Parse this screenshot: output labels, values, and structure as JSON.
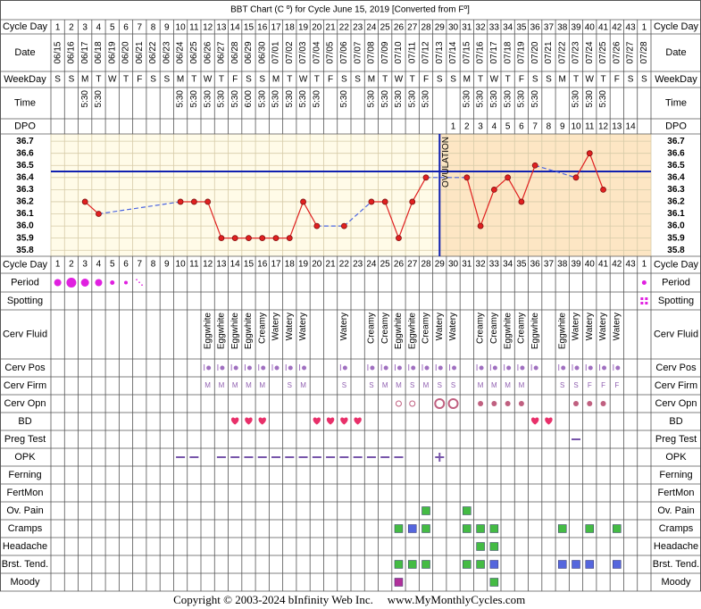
{
  "title": "BBT Chart (C º) for Cycle June 15, 2019  [Converted from Fº]",
  "labels": {
    "cycle_day": "Cycle Day",
    "date": "Date",
    "weekday": "WeekDay",
    "time": "Time",
    "dpo": "DPO",
    "period": "Period",
    "spotting": "Spotting",
    "cerv_fluid": "Cerv Fluid",
    "cerv_pos": "Cerv Pos",
    "cerv_firm": "Cerv Firm",
    "cerv_opn": "Cerv Opn",
    "bd": "BD",
    "preg_test": "Preg Test",
    "opk": "OPK",
    "ferning": "Ferning",
    "fertmon": "FertMon",
    "ov_pain": "Ov. Pain",
    "cramps": "Cramps",
    "headache": "Headache",
    "brst_tend": "Brst. Tend.",
    "moody": "Moody"
  },
  "cycle_days": [
    1,
    2,
    3,
    4,
    5,
    6,
    7,
    8,
    9,
    10,
    11,
    12,
    13,
    14,
    15,
    16,
    17,
    18,
    19,
    20,
    21,
    22,
    23,
    24,
    25,
    26,
    27,
    28,
    29,
    30,
    31,
    32,
    33,
    34,
    35,
    36,
    37,
    38,
    39,
    40,
    41,
    42,
    43,
    1
  ],
  "dates": [
    "06/15",
    "06/16",
    "06/17",
    "06/18",
    "06/19",
    "06/20",
    "06/21",
    "06/22",
    "06/23",
    "06/24",
    "06/25",
    "06/26",
    "06/27",
    "06/28",
    "06/29",
    "06/30",
    "07/01",
    "07/02",
    "07/03",
    "07/04",
    "07/05",
    "07/06",
    "07/07",
    "07/08",
    "07/09",
    "07/10",
    "07/11",
    "07/12",
    "07/13",
    "07/14",
    "07/15",
    "07/16",
    "07/17",
    "07/18",
    "07/19",
    "07/20",
    "07/21",
    "07/22",
    "07/23",
    "07/24",
    "07/25",
    "07/26",
    "07/27",
    "07/28"
  ],
  "weekdays": [
    "S",
    "S",
    "M",
    "T",
    "W",
    "T",
    "F",
    "S",
    "S",
    "M",
    "T",
    "W",
    "T",
    "F",
    "S",
    "S",
    "M",
    "T",
    "W",
    "T",
    "F",
    "S",
    "S",
    "M",
    "T",
    "W",
    "T",
    "F",
    "S",
    "S",
    "M",
    "T",
    "W",
    "T",
    "F",
    "S",
    "S",
    "M",
    "T",
    "W",
    "T",
    "F",
    "S",
    "S"
  ],
  "times": [
    null,
    null,
    "5:30",
    "5:30",
    null,
    null,
    null,
    null,
    null,
    "5:30",
    "5:30",
    "5:30",
    "5:30",
    "5:30",
    "6:00",
    "5:30",
    "5:30",
    "5:30",
    "5:30",
    "5:30",
    null,
    "5:30",
    null,
    "5:30",
    "5:30",
    "5:30",
    "5:30",
    "5:30",
    null,
    null,
    "5:30",
    "5:30",
    "5:30",
    "5:30",
    "5:30",
    "5:30",
    null,
    null,
    "5:30",
    "5:30",
    "5:30",
    null,
    null,
    null
  ],
  "dpo": [
    null,
    null,
    null,
    null,
    null,
    null,
    null,
    null,
    null,
    null,
    null,
    null,
    null,
    null,
    null,
    null,
    null,
    null,
    null,
    null,
    null,
    null,
    null,
    null,
    null,
    null,
    null,
    null,
    null,
    1,
    2,
    3,
    4,
    5,
    6,
    7,
    8,
    9,
    10,
    11,
    12,
    13,
    14,
    null
  ],
  "chart": {
    "type": "line",
    "values": [
      null,
      null,
      36.2,
      36.1,
      null,
      null,
      null,
      null,
      null,
      36.2,
      36.2,
      36.2,
      35.9,
      35.9,
      35.9,
      35.9,
      35.9,
      35.9,
      36.2,
      36.0,
      null,
      36.0,
      null,
      36.2,
      36.2,
      35.9,
      36.2,
      36.4,
      null,
      null,
      36.4,
      36.0,
      36.3,
      36.4,
      36.2,
      36.5,
      null,
      null,
      36.4,
      36.6,
      36.3,
      null,
      null,
      null
    ],
    "ylim": [
      35.75,
      36.76
    ],
    "yticks": [
      {
        "value": 36.7,
        "label": "36.7"
      },
      {
        "value": 36.6,
        "label": "36.6"
      },
      {
        "value": 36.5,
        "label": "36.5"
      },
      {
        "value": 36.4,
        "label": "36.4"
      },
      {
        "value": 36.3,
        "label": "36.3"
      },
      {
        "value": 36.2,
        "label": "36.2"
      },
      {
        "value": 36.1,
        "label": "36.1"
      },
      {
        "value": 36.0,
        "label": "36.0"
      },
      {
        "value": 35.9,
        "label": "35.9"
      },
      {
        "value": 35.8,
        "label": "35.8"
      }
    ],
    "coverline": 36.45,
    "ovulation_date": "07/13",
    "ovulation_label": "OVULATION",
    "grid": true,
    "color": "#e02020",
    "gap_color": "#4a64e0",
    "coverline_color": "#1020b0"
  },
  "cerv_fluid": [
    null,
    null,
    null,
    null,
    null,
    null,
    null,
    null,
    null,
    null,
    null,
    "Eggwhite",
    "Eggwhite",
    "Eggwhite",
    "Eggwhite",
    "Creamy",
    "Watery",
    "Watery",
    "Watery",
    null,
    null,
    "Watery",
    null,
    "Creamy",
    "Creamy",
    "Eggwhite",
    "Eggwhite",
    "Creamy",
    "Watery",
    "Watery",
    null,
    "Creamy",
    "Creamy",
    "Eggwhite",
    "Creamy",
    "Eggwhite",
    null,
    "Eggwhite",
    "Watery",
    "Watery",
    "Watery",
    "Watery",
    null,
    null
  ],
  "cerv_firm": [
    null,
    null,
    null,
    null,
    null,
    null,
    null,
    null,
    null,
    null,
    null,
    "M",
    "M",
    "M",
    "M",
    "M",
    null,
    "S",
    "M",
    null,
    null,
    "S",
    null,
    "S",
    "M",
    "M",
    "S",
    "M",
    "S",
    "S",
    null,
    "M",
    "M",
    "M",
    "M",
    null,
    null,
    "S",
    "S",
    "F",
    "F",
    "F",
    null,
    null
  ],
  "period": [
    "06/15",
    "06/16",
    "06/17",
    "06/18",
    "06/19",
    "06/20",
    "06/21",
    "07/28"
  ],
  "spotting": [
    "07/28"
  ],
  "cerv_pos": [
    "06/26",
    "06/27",
    "06/28",
    "06/29",
    "06/30",
    "07/01",
    "07/02",
    "07/03",
    "07/06",
    "07/08",
    "07/09",
    "07/10",
    "07/11",
    "07/12",
    "07/13",
    "07/14",
    "07/16",
    "07/17",
    "07/18",
    "07/19",
    "07/20",
    "07/22",
    "07/23",
    "07/24",
    "07/25",
    "07/26"
  ],
  "cerv_opn": [
    "07/10",
    "07/11",
    "07/13",
    "07/14",
    "07/16",
    "07/17",
    "07/18",
    "07/19",
    "07/23",
    "07/24",
    "07/25"
  ],
  "bd": [
    "06/28",
    "06/29",
    "06/30",
    "07/04",
    "07/05",
    "07/06",
    "07/07",
    "07/20",
    "07/21"
  ],
  "preg_test": [
    "07/23"
  ],
  "opk": [
    "06/24",
    "06/25",
    "06/27",
    "06/28",
    "06/29",
    "06/30",
    "07/01",
    "07/02",
    "07/03",
    "07/04",
    "07/05",
    "07/06",
    "07/07",
    "07/08",
    "07/09",
    "07/10"
  ],
  "opk_positive": [
    "07/13"
  ],
  "ov_pain": [
    {
      "date": "07/12",
      "color": "#44bb44"
    },
    {
      "date": "07/15",
      "color": "#44bb44"
    }
  ],
  "cramps": [
    {
      "date": "07/10",
      "color": "#44bb44"
    },
    {
      "date": "07/11",
      "color": "#5566dd"
    },
    {
      "date": "07/12",
      "color": "#44bb44"
    },
    {
      "date": "07/15",
      "color": "#44bb44"
    },
    {
      "date": "07/16",
      "color": "#44bb44"
    },
    {
      "date": "07/17",
      "color": "#44bb44"
    },
    {
      "date": "07/22",
      "color": "#44bb44"
    },
    {
      "date": "07/24",
      "color": "#44bb44"
    },
    {
      "date": "07/26",
      "color": "#44bb44"
    }
  ],
  "headache": [
    {
      "date": "07/16",
      "color": "#44bb44"
    },
    {
      "date": "07/17",
      "color": "#44bb44"
    }
  ],
  "brst_tend": [
    {
      "date": "07/10",
      "color": "#44bb44"
    },
    {
      "date": "07/11",
      "color": "#44bb44"
    },
    {
      "date": "07/12",
      "color": "#44bb44"
    },
    {
      "date": "07/15",
      "color": "#44bb44"
    },
    {
      "date": "07/16",
      "color": "#44bb44"
    },
    {
      "date": "07/17",
      "color": "#5566dd"
    },
    {
      "date": "07/22",
      "color": "#5566dd"
    },
    {
      "date": "07/23",
      "color": "#5566dd"
    },
    {
      "date": "07/24",
      "color": "#5566dd"
    },
    {
      "date": "07/26",
      "color": "#5566dd"
    }
  ],
  "moody": [
    {
      "date": "07/10",
      "color": "#b0309a"
    },
    {
      "date": "07/17",
      "color": "#44bb44"
    }
  ],
  "footer": [
    "Copyright © 2003-2024 bInfinity Web Inc.",
    "www.MyMonthlyCycles.com"
  ]
}
